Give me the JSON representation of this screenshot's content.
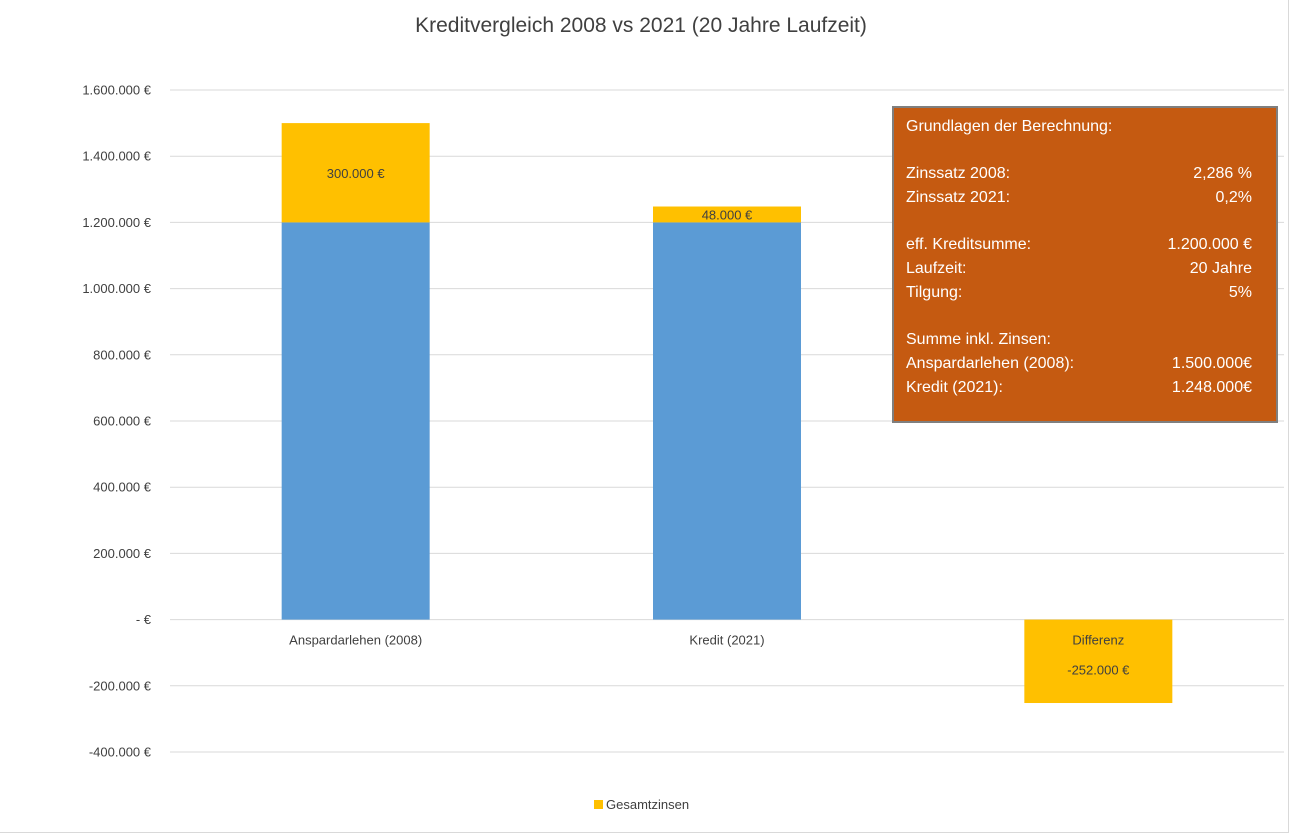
{
  "chart_data": {
    "type": "bar",
    "title": "Kreditvergleich 2008 vs 2021 (20 Jahre Laufzeit)",
    "categories": [
      "Anspardarlehen (2008)",
      "Kredit (2021)",
      "Differenz"
    ],
    "series": [
      {
        "values": [
          1200000,
          1200000,
          0
        ],
        "color": "#5b9bd5"
      },
      {
        "name": "Gesamtzinsen",
        "values": [
          300000,
          48000,
          -252000
        ],
        "data_labels": [
          "300.000 €",
          "48.000 €",
          "-252.000 €"
        ],
        "color": "#ffc000"
      }
    ],
    "stacked": true,
    "ylim": [
      -400000,
      1600000
    ],
    "y_ticks": [
      1600000,
      1400000,
      1200000,
      1000000,
      800000,
      600000,
      400000,
      200000,
      0,
      -200000,
      -400000
    ],
    "y_tick_labels": [
      "1.600.000 €",
      "1.400.000 €",
      "1.200.000 €",
      "1.000.000 €",
      "800.000 €",
      "600.000 €",
      "400.000 €",
      "200.000 €",
      "-   €",
      "-200.000 €",
      "-400.000 €"
    ],
    "grid": true,
    "legend": {
      "position": "bottom",
      "entries": [
        "Gesamtzinsen"
      ]
    }
  },
  "info_box": {
    "heading": "Grundlagen der Berechnung:",
    "zinssatz_2008_label": "Zinssatz 2008:",
    "zinssatz_2008_value": "2,286 %",
    "zinssatz_2021_label": "Zinssatz 2021:",
    "zinssatz_2021_value": "0,2%",
    "kreditsumme_label": "eff. Kreditsumme:",
    "kreditsumme_value": "1.200.000 €",
    "laufzeit_label": "Laufzeit:",
    "laufzeit_value": "20 Jahre",
    "tilgung_label": "Tilgung:",
    "tilgung_value": "5%",
    "summe_heading": "Summe inkl. Zinsen:",
    "anspar_label": "Anspardarlehen (2008):",
    "anspar_value": "1.500.000€",
    "kredit_label": "Kredit (2021):",
    "kredit_value": "1.248.000€",
    "background": "#c55a11"
  }
}
